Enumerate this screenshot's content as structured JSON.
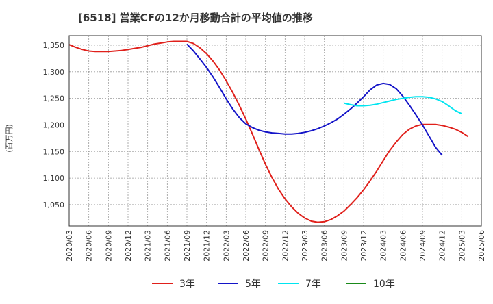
{
  "chart_data": {
    "type": "line",
    "title": "[6518]  営業CFの12か月移動合計の平均値の推移",
    "ylabel": "(百万円)",
    "xlabel": "",
    "ylim": [
      1010,
      1368
    ],
    "yticks": [
      1050,
      1100,
      1150,
      1200,
      1250,
      1300,
      1350
    ],
    "ytick_labels": [
      "1,050",
      "1,100",
      "1,150",
      "1,200",
      "1,250",
      "1,300",
      "1,350"
    ],
    "xtick_labels": [
      "2020/03",
      "2020/06",
      "2020/09",
      "2020/12",
      "2021/03",
      "2021/06",
      "2021/09",
      "2021/12",
      "2022/03",
      "2022/06",
      "2022/09",
      "2022/12",
      "2023/03",
      "2023/06",
      "2023/09",
      "2023/12",
      "2024/03",
      "2024/06",
      "2024/09",
      "2024/12",
      "2025/03",
      "2025/06"
    ],
    "grid": true,
    "legend_position": "bottom",
    "series": [
      {
        "name": "3年",
        "color": "#e0201b",
        "start_index": 0,
        "values": [
          1351,
          1346,
          1342,
          1339,
          1338,
          1338,
          1338,
          1339,
          1340,
          1342,
          1344,
          1346,
          1349,
          1352,
          1354,
          1356,
          1357,
          1357,
          1357,
          1353,
          1345,
          1334,
          1320,
          1303,
          1283,
          1261,
          1237,
          1211,
          1183,
          1154,
          1126,
          1101,
          1079,
          1061,
          1046,
          1034,
          1025,
          1019,
          1017,
          1018,
          1022,
          1029,
          1038,
          1050,
          1063,
          1078,
          1095,
          1113,
          1133,
          1152,
          1168,
          1182,
          1192,
          1198,
          1201,
          1201,
          1201,
          1199,
          1196,
          1192,
          1186,
          1178
        ]
      },
      {
        "name": "5年",
        "color": "#1414c8",
        "start_index": 18,
        "values": [
          1352,
          1339,
          1324,
          1308,
          1290,
          1270,
          1249,
          1230,
          1214,
          1202,
          1195,
          1190,
          1187,
          1185,
          1184,
          1183,
          1183,
          1184,
          1186,
          1189,
          1193,
          1198,
          1204,
          1211,
          1220,
          1230,
          1241,
          1253,
          1266,
          1275,
          1278,
          1276,
          1268,
          1254,
          1237,
          1219,
          1200,
          1179,
          1158,
          1143
        ]
      },
      {
        "name": "7年",
        "color": "#00e5f0",
        "start_index": 42,
        "values": [
          1241,
          1238,
          1236,
          1236,
          1237,
          1239,
          1242,
          1245,
          1248,
          1250,
          1252,
          1253,
          1253,
          1252,
          1249,
          1244,
          1236,
          1227,
          1221
        ]
      },
      {
        "name": "10年",
        "color": "#1a8a1a",
        "start_index": null,
        "values": []
      }
    ]
  }
}
